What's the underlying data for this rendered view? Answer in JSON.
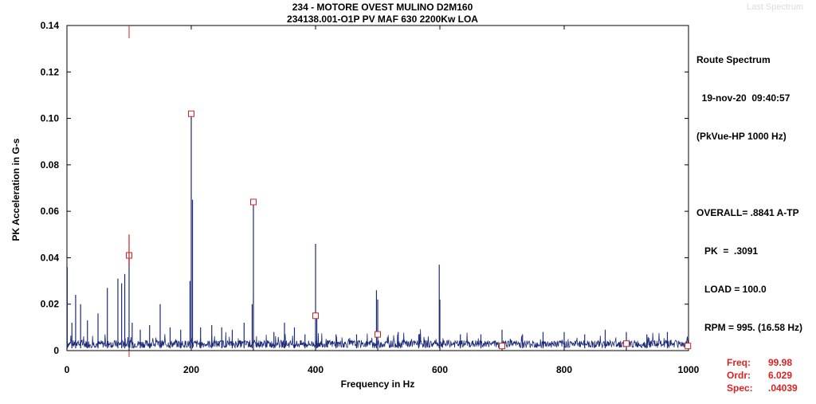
{
  "chart_data": {
    "type": "line",
    "title": "234  - MOTORE OVEST MULINO D2M160",
    "subtitle": "234138.001-O1P   PV MAF 630 2200Kw LOA",
    "xlabel": "Frequency in Hz",
    "ylabel": "PK Acceleration in G-s",
    "xlim": [
      0,
      1000
    ],
    "ylim": [
      0,
      0.14
    ],
    "x_ticks": [
      "0",
      "200",
      "400",
      "600",
      "800",
      "1000"
    ],
    "y_ticks": [
      "0",
      "0.02",
      "0.04",
      "0.06",
      "0.08",
      "0.10",
      "0.12",
      "0.14"
    ],
    "grid": false,
    "baseline_noise": 0.003,
    "series": [
      {
        "color": "#1c2a78",
        "peaks": [
          {
            "x": 0.5,
            "y": 0.036
          },
          {
            "x": 8,
            "y": 0.012
          },
          {
            "x": 14,
            "y": 0.024
          },
          {
            "x": 22,
            "y": 0.02
          },
          {
            "x": 33,
            "y": 0.013
          },
          {
            "x": 50,
            "y": 0.016
          },
          {
            "x": 65,
            "y": 0.027
          },
          {
            "x": 82,
            "y": 0.031
          },
          {
            "x": 88,
            "y": 0.029
          },
          {
            "x": 93,
            "y": 0.033
          },
          {
            "x": 99.98,
            "y": 0.04
          },
          {
            "x": 105,
            "y": 0.012
          },
          {
            "x": 118,
            "y": 0.009
          },
          {
            "x": 133,
            "y": 0.011
          },
          {
            "x": 150,
            "y": 0.02
          },
          {
            "x": 166,
            "y": 0.01
          },
          {
            "x": 183,
            "y": 0.009
          },
          {
            "x": 198,
            "y": 0.03
          },
          {
            "x": 200,
            "y": 0.102
          },
          {
            "x": 202,
            "y": 0.065
          },
          {
            "x": 215,
            "y": 0.01
          },
          {
            "x": 233,
            "y": 0.011
          },
          {
            "x": 249,
            "y": 0.01
          },
          {
            "x": 266,
            "y": 0.009
          },
          {
            "x": 285,
            "y": 0.012
          },
          {
            "x": 298,
            "y": 0.02
          },
          {
            "x": 300,
            "y": 0.064
          },
          {
            "x": 333,
            "y": 0.008
          },
          {
            "x": 350,
            "y": 0.012
          },
          {
            "x": 366,
            "y": 0.01
          },
          {
            "x": 383,
            "y": 0.007
          },
          {
            "x": 400,
            "y": 0.046
          },
          {
            "x": 402,
            "y": 0.016
          },
          {
            "x": 433,
            "y": 0.007
          },
          {
            "x": 466,
            "y": 0.007
          },
          {
            "x": 498,
            "y": 0.026
          },
          {
            "x": 500,
            "y": 0.022
          },
          {
            "x": 533,
            "y": 0.008
          },
          {
            "x": 566,
            "y": 0.007
          },
          {
            "x": 599,
            "y": 0.037
          },
          {
            "x": 600,
            "y": 0.022
          },
          {
            "x": 633,
            "y": 0.007
          },
          {
            "x": 666,
            "y": 0.007
          },
          {
            "x": 700,
            "y": 0.009
          },
          {
            "x": 733,
            "y": 0.007
          },
          {
            "x": 766,
            "y": 0.008
          },
          {
            "x": 800,
            "y": 0.008
          },
          {
            "x": 833,
            "y": 0.007
          },
          {
            "x": 866,
            "y": 0.009
          },
          {
            "x": 900,
            "y": 0.008
          },
          {
            "x": 933,
            "y": 0.007
          },
          {
            "x": 966,
            "y": 0.008
          }
        ]
      }
    ],
    "markers": [
      {
        "x": 99.98,
        "y": 0.041
      },
      {
        "x": 200,
        "y": 0.102
      },
      {
        "x": 300,
        "y": 0.064
      },
      {
        "x": 400,
        "y": 0.015
      },
      {
        "x": 500,
        "y": 0.007
      },
      {
        "x": 700,
        "y": 0.002
      },
      {
        "x": 900,
        "y": 0.003
      },
      {
        "x": 999,
        "y": 0.002
      }
    ],
    "cursor_x": 99.98
  },
  "info": {
    "watermark": "Last Spectrum",
    "lines": [
      "Route Spectrum",
      "  19-nov-20  09:40:57",
      "(PkVue-HP 1000 Hz)",
      "",
      "OVERALL= .8841 A-TP",
      "   PK  =  .3091",
      "   LOAD = 100.0",
      "   RPM = 995. (16.58 Hz)"
    ]
  },
  "cursor_readout": [
    {
      "label": "Freq:",
      "value": "99.98"
    },
    {
      "label": "Ordr:",
      "value": "6.029"
    },
    {
      "label": "Spec:",
      "value": ".04039"
    }
  ],
  "colors": {
    "trace": "#1c2a78",
    "marker": "#cc2222",
    "cursor": "#cc2222"
  }
}
